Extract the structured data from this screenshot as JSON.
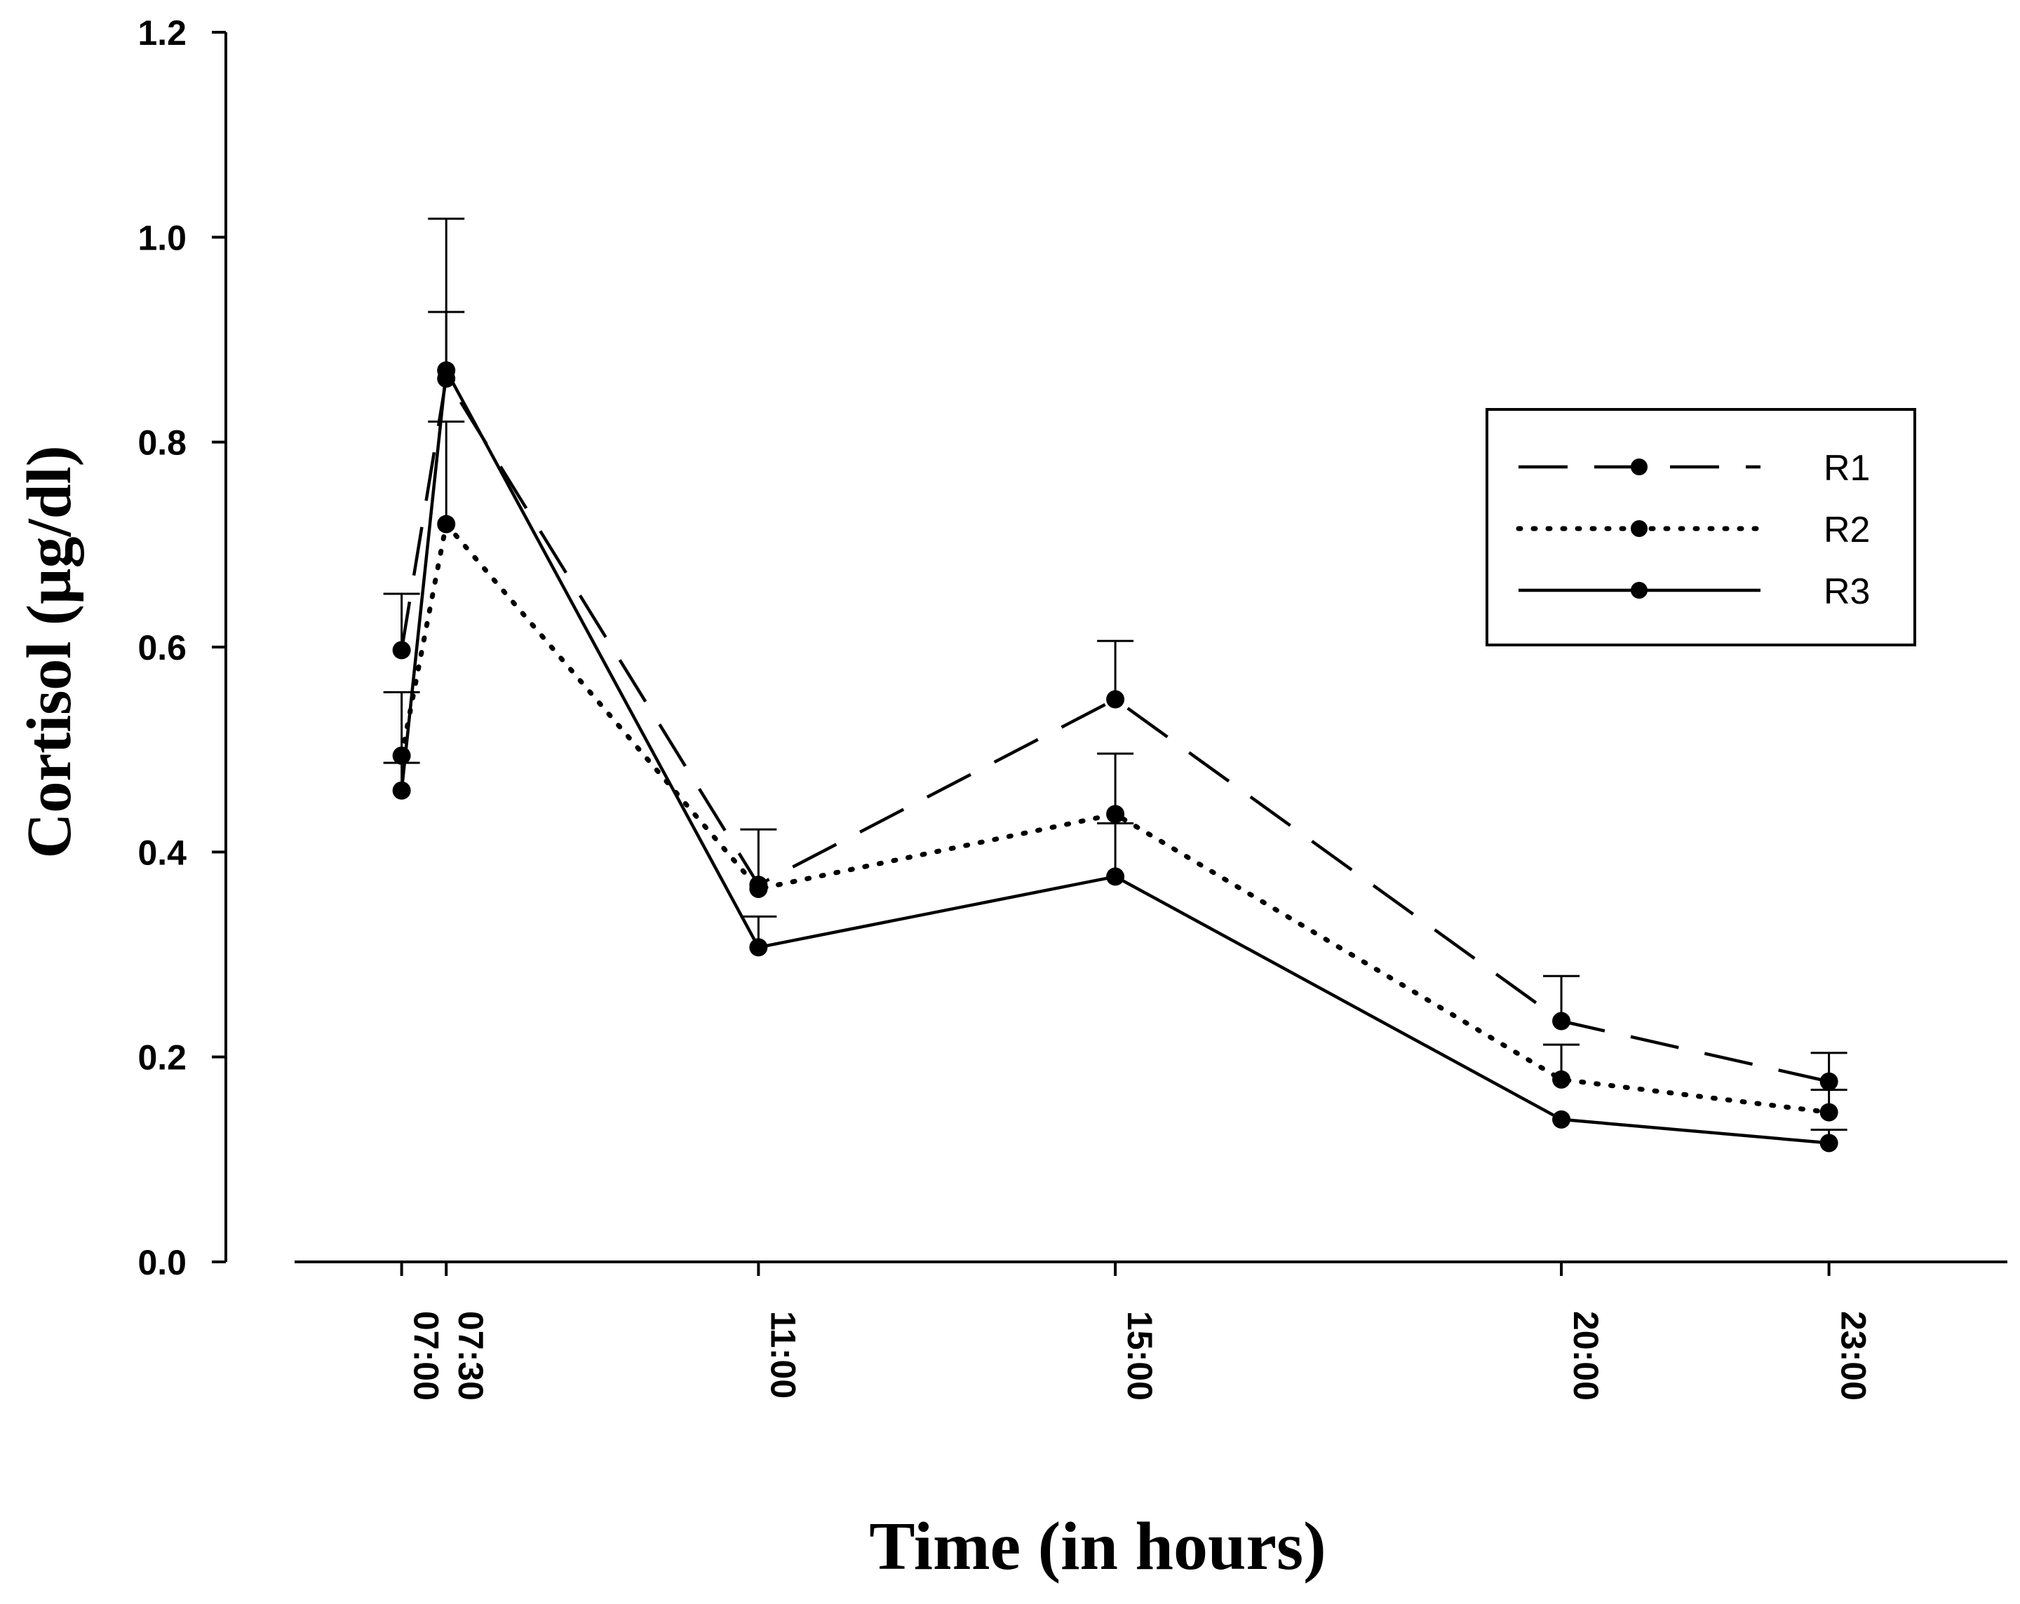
{
  "chart_data": {
    "type": "line",
    "title": "",
    "xlabel": "Time (in hours)",
    "ylabel": "Cortisol (µg/dl)",
    "categories": [
      "07:00",
      "07:30",
      "11:00",
      "15:00",
      "20:00",
      "23:00"
    ],
    "x_hours": [
      7.0,
      7.5,
      11.0,
      15.0,
      20.0,
      23.0
    ],
    "xlim": [
      5.8,
      25.0
    ],
    "ylim": [
      0.0,
      1.2
    ],
    "yticks": [
      "0.0",
      "0.2",
      "0.4",
      "0.6",
      "0.8",
      "1.0",
      "1.2"
    ],
    "ytick_values": [
      0.0,
      0.2,
      0.4,
      0.6,
      0.8,
      1.0,
      1.2
    ],
    "grid": false,
    "legend_position": "top-right",
    "series": [
      {
        "name": "R1",
        "style": "dashed",
        "values": [
          0.597,
          0.862,
          0.368,
          0.549,
          0.235,
          0.176
        ],
        "error_upper": [
          0.652,
          0.927,
          0.422,
          0.606,
          0.279,
          0.204
        ]
      },
      {
        "name": "R2",
        "style": "dotted",
        "values": [
          0.494,
          0.72,
          0.364,
          0.437,
          0.178,
          0.146
        ],
        "error_upper": [
          0.556,
          0.82,
          0.0,
          0.496,
          0.212,
          0.168
        ]
      },
      {
        "name": "R3",
        "style": "solid",
        "values": [
          0.46,
          0.87,
          0.307,
          0.376,
          0.139,
          0.116
        ],
        "error_upper": [
          0.487,
          1.018,
          0.337,
          0.428,
          0.0,
          0.129
        ]
      }
    ]
  }
}
